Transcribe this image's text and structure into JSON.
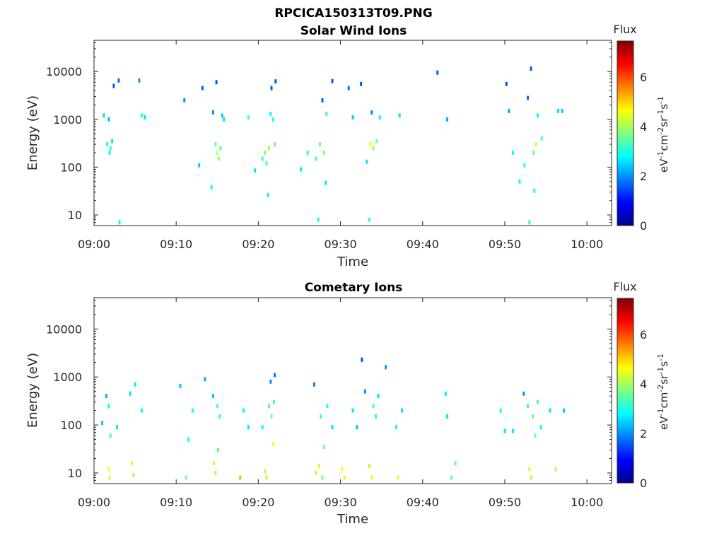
{
  "figure": {
    "title": "RPCICA150313T09.PNG"
  },
  "colorbar": {
    "label": "Flux",
    "unit_html": "eV-1cm-2sr-1s-1",
    "ticks": [
      "0",
      "2",
      "4",
      "6"
    ],
    "range": [
      0,
      7.4
    ]
  },
  "chart_data": [
    {
      "type": "heatmap",
      "title": "Solar Wind Ions",
      "xlabel": "Time",
      "ylabel": "Energy (eV)",
      "yscale": "log",
      "ylim": [
        6,
        45000
      ],
      "xlim_minutes_after_0900": [
        0,
        63
      ],
      "xticks": [
        "09:00",
        "09:10",
        "09:20",
        "09:30",
        "09:40",
        "09:50",
        "10:00"
      ],
      "yticks": [
        "10",
        "100",
        "1000",
        "10000"
      ],
      "cells": [
        {
          "t": 1.2,
          "e": 1200,
          "f": 2.5
        },
        {
          "t": 1.8,
          "e": 1000,
          "f": 2.3
        },
        {
          "t": 1.6,
          "e": 300,
          "f": 3.0
        },
        {
          "t": 2.0,
          "e": 250,
          "f": 3.2
        },
        {
          "t": 1.9,
          "e": 200,
          "f": 2.8
        },
        {
          "t": 2.2,
          "e": 350,
          "f": 2.6
        },
        {
          "t": 2.4,
          "e": 5000,
          "f": 1.5
        },
        {
          "t": 3.0,
          "e": 6500,
          "f": 1.7
        },
        {
          "t": 3.1,
          "e": 7,
          "f": 2.8
        },
        {
          "t": 5.5,
          "e": 6500,
          "f": 2.0
        },
        {
          "t": 5.8,
          "e": 1200,
          "f": 3.0
        },
        {
          "t": 6.2,
          "e": 1100,
          "f": 2.6
        },
        {
          "t": 11.0,
          "e": 2500,
          "f": 2.0
        },
        {
          "t": 12.8,
          "e": 110,
          "f": 2.4
        },
        {
          "t": 13.2,
          "e": 4500,
          "f": 1.6
        },
        {
          "t": 14.5,
          "e": 1400,
          "f": 2.0
        },
        {
          "t": 14.8,
          "e": 300,
          "f": 3.5
        },
        {
          "t": 15.0,
          "e": 200,
          "f": 4.2
        },
        {
          "t": 15.2,
          "e": 150,
          "f": 3.8
        },
        {
          "t": 15.4,
          "e": 250,
          "f": 3.3
        },
        {
          "t": 15.6,
          "e": 1200,
          "f": 2.4
        },
        {
          "t": 15.8,
          "e": 1000,
          "f": 2.6
        },
        {
          "t": 14.3,
          "e": 38,
          "f": 2.8
        },
        {
          "t": 14.9,
          "e": 6000,
          "f": 1.5
        },
        {
          "t": 18.8,
          "e": 1100,
          "f": 3.2
        },
        {
          "t": 19.6,
          "e": 85,
          "f": 2.6
        },
        {
          "t": 20.5,
          "e": 150,
          "f": 3.2
        },
        {
          "t": 20.8,
          "e": 200,
          "f": 3.8
        },
        {
          "t": 21.0,
          "e": 120,
          "f": 3.4
        },
        {
          "t": 21.3,
          "e": 250,
          "f": 4.0
        },
        {
          "t": 21.5,
          "e": 1300,
          "f": 2.8
        },
        {
          "t": 21.8,
          "e": 1000,
          "f": 3.0
        },
        {
          "t": 22.0,
          "e": 300,
          "f": 3.6
        },
        {
          "t": 21.2,
          "e": 26,
          "f": 2.8
        },
        {
          "t": 21.6,
          "e": 4500,
          "f": 1.6
        },
        {
          "t": 22.1,
          "e": 6200,
          "f": 1.5
        },
        {
          "t": 25.2,
          "e": 90,
          "f": 2.6
        },
        {
          "t": 26.0,
          "e": 200,
          "f": 3.0
        },
        {
          "t": 27.0,
          "e": 150,
          "f": 3.3
        },
        {
          "t": 27.5,
          "e": 300,
          "f": 3.6
        },
        {
          "t": 28.0,
          "e": 200,
          "f": 3.8
        },
        {
          "t": 28.3,
          "e": 1300,
          "f": 3.2
        },
        {
          "t": 27.8,
          "e": 2500,
          "f": 1.6
        },
        {
          "t": 28.2,
          "e": 47,
          "f": 2.6
        },
        {
          "t": 27.3,
          "e": 8,
          "f": 3.0
        },
        {
          "t": 29.0,
          "e": 6300,
          "f": 1.5
        },
        {
          "t": 31.0,
          "e": 4500,
          "f": 1.8
        },
        {
          "t": 31.5,
          "e": 1100,
          "f": 2.4
        },
        {
          "t": 32.5,
          "e": 5500,
          "f": 1.5
        },
        {
          "t": 33.2,
          "e": 130,
          "f": 2.6
        },
        {
          "t": 33.6,
          "e": 300,
          "f": 4.6
        },
        {
          "t": 34.0,
          "e": 250,
          "f": 3.8
        },
        {
          "t": 34.4,
          "e": 350,
          "f": 3.6
        },
        {
          "t": 34.8,
          "e": 1100,
          "f": 2.8
        },
        {
          "t": 33.5,
          "e": 8,
          "f": 3.0
        },
        {
          "t": 33.8,
          "e": 1400,
          "f": 2.0
        },
        {
          "t": 37.2,
          "e": 1200,
          "f": 2.6
        },
        {
          "t": 41.8,
          "e": 9500,
          "f": 1.6
        },
        {
          "t": 43.0,
          "e": 1000,
          "f": 2.2
        },
        {
          "t": 50.2,
          "e": 5500,
          "f": 1.5
        },
        {
          "t": 50.5,
          "e": 1500,
          "f": 2.2
        },
        {
          "t": 51.0,
          "e": 200,
          "f": 2.8
        },
        {
          "t": 51.8,
          "e": 50,
          "f": 2.8
        },
        {
          "t": 52.4,
          "e": 110,
          "f": 3.0
        },
        {
          "t": 52.8,
          "e": 2800,
          "f": 1.8
        },
        {
          "t": 53.2,
          "e": 11500,
          "f": 1.5
        },
        {
          "t": 53.5,
          "e": 200,
          "f": 3.6
        },
        {
          "t": 53.8,
          "e": 300,
          "f": 4.2
        },
        {
          "t": 54.0,
          "e": 1200,
          "f": 2.8
        },
        {
          "t": 53.0,
          "e": 7,
          "f": 3.0
        },
        {
          "t": 53.6,
          "e": 32,
          "f": 2.8
        },
        {
          "t": 54.5,
          "e": 400,
          "f": 3.2
        },
        {
          "t": 56.5,
          "e": 1500,
          "f": 2.6
        },
        {
          "t": 57.0,
          "e": 1500,
          "f": 2.4
        }
      ]
    },
    {
      "type": "heatmap",
      "title": "Cometary Ions",
      "xlabel": "Time",
      "ylabel": "Energy (eV)",
      "yscale": "log",
      "ylim": [
        6,
        45000
      ],
      "xlim_minutes_after_0900": [
        0,
        63
      ],
      "xticks": [
        "09:00",
        "09:10",
        "09:20",
        "09:30",
        "09:40",
        "09:50",
        "10:00"
      ],
      "yticks": [
        "10",
        "100",
        "1000",
        "10000"
      ],
      "cells": [
        {
          "t": 1.0,
          "e": 110,
          "f": 2.4
        },
        {
          "t": 1.5,
          "e": 400,
          "f": 2.2
        },
        {
          "t": 1.8,
          "e": 250,
          "f": 2.8
        },
        {
          "t": 1.8,
          "e": 12,
          "f": 4.6
        },
        {
          "t": 1.9,
          "e": 8,
          "f": 4.4
        },
        {
          "t": 2.0,
          "e": 60,
          "f": 3.2
        },
        {
          "t": 2.8,
          "e": 90,
          "f": 2.6
        },
        {
          "t": 4.4,
          "e": 450,
          "f": 2.6
        },
        {
          "t": 4.6,
          "e": 16,
          "f": 4.4
        },
        {
          "t": 4.8,
          "e": 9,
          "f": 4.0
        },
        {
          "t": 5.0,
          "e": 700,
          "f": 2.6
        },
        {
          "t": 5.8,
          "e": 200,
          "f": 2.8
        },
        {
          "t": 10.5,
          "e": 650,
          "f": 2.4
        },
        {
          "t": 11.2,
          "e": 8,
          "f": 3.6
        },
        {
          "t": 11.5,
          "e": 50,
          "f": 2.8
        },
        {
          "t": 12.0,
          "e": 200,
          "f": 3.0
        },
        {
          "t": 13.5,
          "e": 900,
          "f": 2.2
        },
        {
          "t": 14.5,
          "e": 400,
          "f": 2.4
        },
        {
          "t": 14.6,
          "e": 16,
          "f": 4.4
        },
        {
          "t": 14.8,
          "e": 10,
          "f": 4.0
        },
        {
          "t": 15.0,
          "e": 250,
          "f": 3.4
        },
        {
          "t": 15.3,
          "e": 150,
          "f": 3.2
        },
        {
          "t": 15.1,
          "e": 30,
          "f": 3.4
        },
        {
          "t": 17.8,
          "e": 8,
          "f": 5.2
        },
        {
          "t": 18.2,
          "e": 200,
          "f": 2.8
        },
        {
          "t": 18.8,
          "e": 90,
          "f": 2.6
        },
        {
          "t": 20.5,
          "e": 90,
          "f": 2.8
        },
        {
          "t": 20.8,
          "e": 11,
          "f": 4.2
        },
        {
          "t": 21.0,
          "e": 8,
          "f": 4.0
        },
        {
          "t": 21.3,
          "e": 250,
          "f": 3.4
        },
        {
          "t": 21.6,
          "e": 150,
          "f": 3.6
        },
        {
          "t": 21.9,
          "e": 300,
          "f": 3.4
        },
        {
          "t": 21.8,
          "e": 40,
          "f": 4.6
        },
        {
          "t": 21.5,
          "e": 800,
          "f": 2.0
        },
        {
          "t": 22.0,
          "e": 1100,
          "f": 1.8
        },
        {
          "t": 26.8,
          "e": 700,
          "f": 1.8
        },
        {
          "t": 27.0,
          "e": 10,
          "f": 4.2
        },
        {
          "t": 27.4,
          "e": 14,
          "f": 4.4
        },
        {
          "t": 27.8,
          "e": 8,
          "f": 3.8
        },
        {
          "t": 27.6,
          "e": 150,
          "f": 3.2
        },
        {
          "t": 28.0,
          "e": 35,
          "f": 3.6
        },
        {
          "t": 28.4,
          "e": 250,
          "f": 3.0
        },
        {
          "t": 29.0,
          "e": 90,
          "f": 2.6
        },
        {
          "t": 30.2,
          "e": 12,
          "f": 4.6
        },
        {
          "t": 30.5,
          "e": 8,
          "f": 4.4
        },
        {
          "t": 31.5,
          "e": 200,
          "f": 2.6
        },
        {
          "t": 32.0,
          "e": 90,
          "f": 2.4
        },
        {
          "t": 32.6,
          "e": 2300,
          "f": 1.5
        },
        {
          "t": 33.0,
          "e": 500,
          "f": 2.0
        },
        {
          "t": 33.5,
          "e": 14,
          "f": 4.8
        },
        {
          "t": 33.8,
          "e": 8,
          "f": 4.4
        },
        {
          "t": 34.0,
          "e": 250,
          "f": 3.4
        },
        {
          "t": 34.3,
          "e": 150,
          "f": 3.0
        },
        {
          "t": 34.6,
          "e": 400,
          "f": 2.6
        },
        {
          "t": 35.5,
          "e": 1600,
          "f": 2.0
        },
        {
          "t": 36.8,
          "e": 90,
          "f": 2.8
        },
        {
          "t": 37.0,
          "e": 8,
          "f": 4.4
        },
        {
          "t": 37.5,
          "e": 200,
          "f": 2.6
        },
        {
          "t": 42.8,
          "e": 450,
          "f": 2.6
        },
        {
          "t": 43.0,
          "e": 150,
          "f": 2.6
        },
        {
          "t": 43.5,
          "e": 8,
          "f": 3.4
        },
        {
          "t": 44.0,
          "e": 16,
          "f": 3.6
        },
        {
          "t": 49.5,
          "e": 200,
          "f": 2.8
        },
        {
          "t": 50.0,
          "e": 75,
          "f": 2.6
        },
        {
          "t": 51.0,
          "e": 75,
          "f": 2.6
        },
        {
          "t": 52.3,
          "e": 450,
          "f": 2.0
        },
        {
          "t": 52.8,
          "e": 250,
          "f": 3.2
        },
        {
          "t": 53.0,
          "e": 12,
          "f": 4.4
        },
        {
          "t": 53.2,
          "e": 8,
          "f": 4.0
        },
        {
          "t": 53.4,
          "e": 150,
          "f": 3.6
        },
        {
          "t": 53.7,
          "e": 60,
          "f": 3.6
        },
        {
          "t": 54.0,
          "e": 300,
          "f": 3.2
        },
        {
          "t": 54.4,
          "e": 90,
          "f": 2.8
        },
        {
          "t": 55.5,
          "e": 200,
          "f": 2.6
        },
        {
          "t": 56.2,
          "e": 12,
          "f": 4.0
        },
        {
          "t": 57.2,
          "e": 200,
          "f": 2.4
        }
      ]
    }
  ]
}
